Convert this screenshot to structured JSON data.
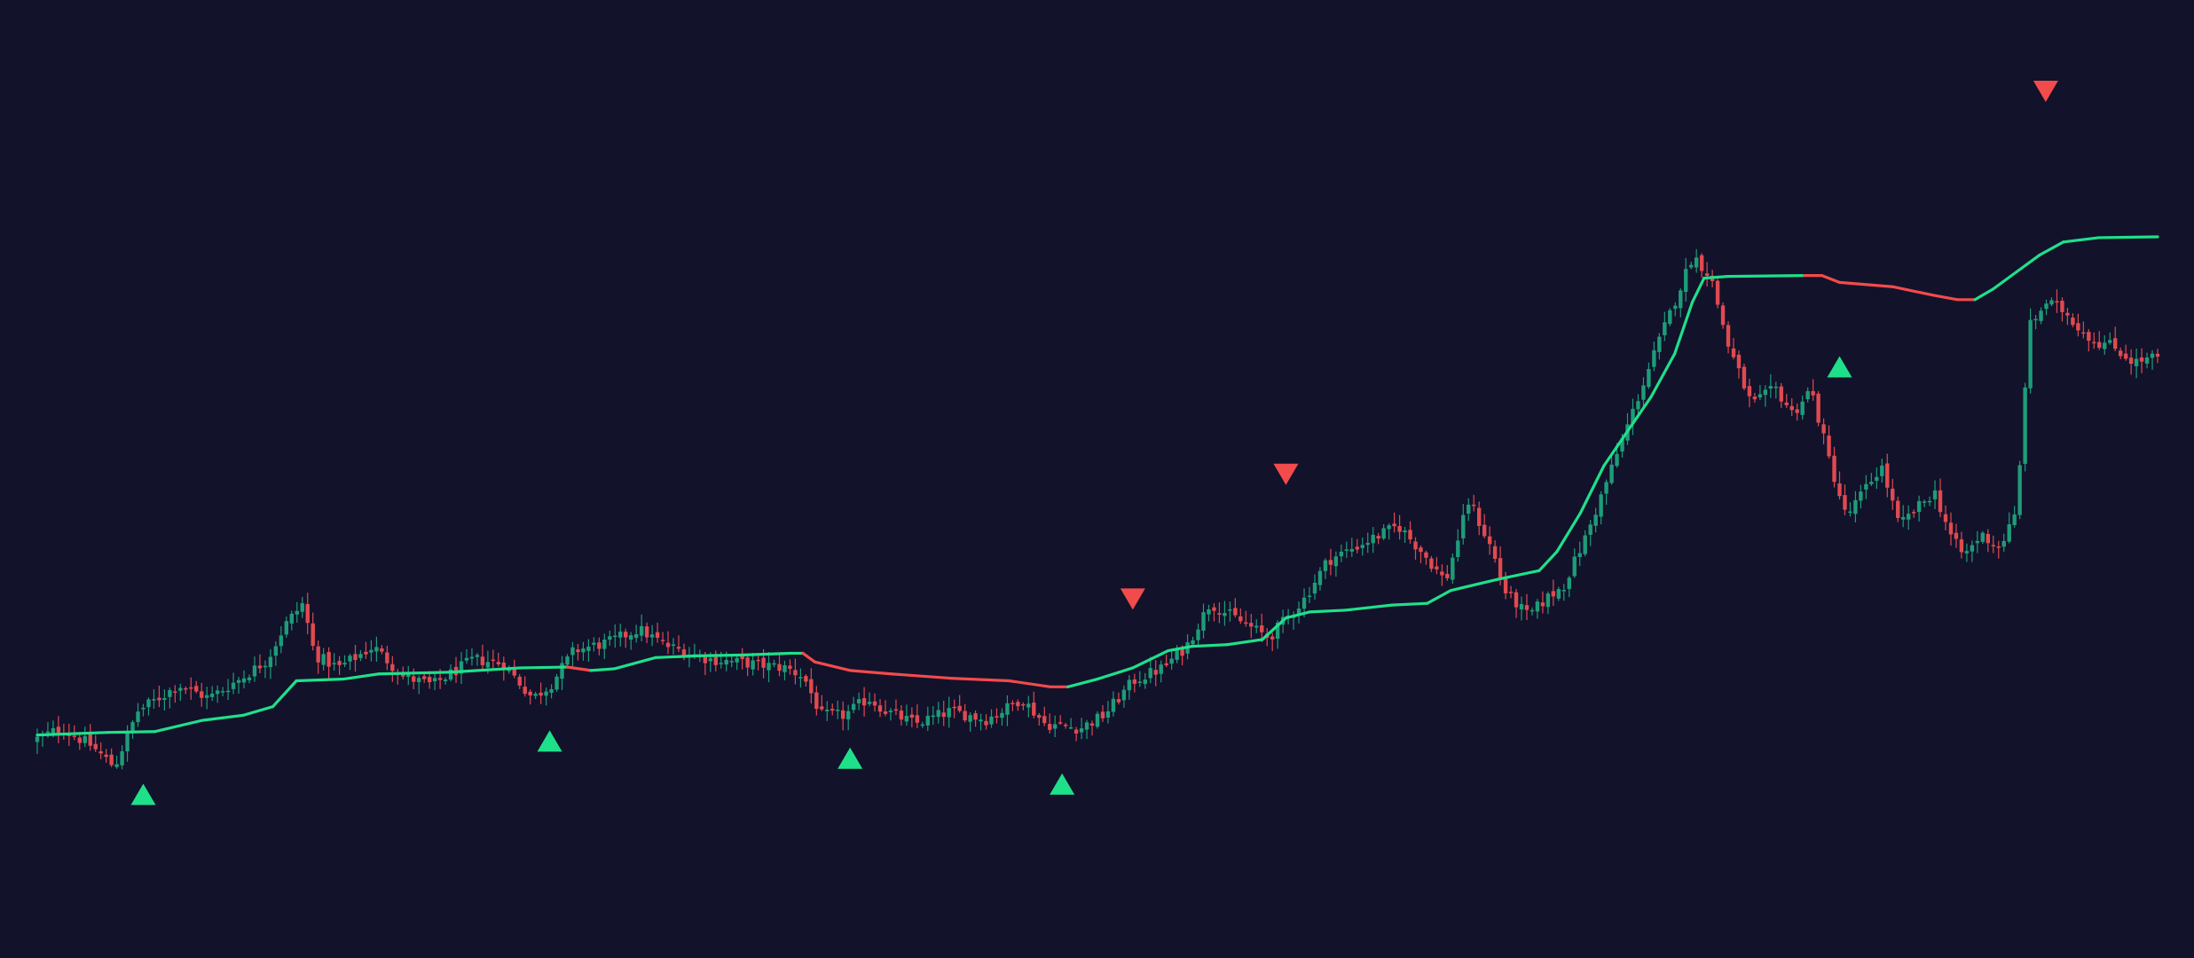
{
  "chart_data": {
    "type": "candlestick",
    "title": "",
    "xlabel": "",
    "ylabel": "",
    "axes_visible": false,
    "grid": false,
    "legend": "none",
    "ylim": [
      0,
      1000
    ],
    "colors": {
      "background": "#12122b",
      "bull": "#1fe08a",
      "bear": "#f24b4b",
      "candle_bull": "#1e9c78",
      "candle_bear": "#e04a4f"
    },
    "price_path": [
      [
        0,
        180
      ],
      [
        5,
        195
      ],
      [
        10,
        175
      ],
      [
        14,
        150
      ],
      [
        18,
        215
      ],
      [
        25,
        245
      ],
      [
        30,
        230
      ],
      [
        36,
        255
      ],
      [
        40,
        275
      ],
      [
        43,
        315
      ],
      [
        46,
        340
      ],
      [
        48,
        280
      ],
      [
        52,
        265
      ],
      [
        58,
        290
      ],
      [
        63,
        255
      ],
      [
        68,
        245
      ],
      [
        75,
        275
      ],
      [
        80,
        270
      ],
      [
        85,
        230
      ],
      [
        88,
        245
      ],
      [
        92,
        285
      ],
      [
        98,
        295
      ],
      [
        103,
        310
      ],
      [
        108,
        290
      ],
      [
        115,
        275
      ],
      [
        122,
        270
      ],
      [
        128,
        265
      ],
      [
        131,
        255
      ],
      [
        134,
        210
      ],
      [
        138,
        210
      ],
      [
        142,
        230
      ],
      [
        145,
        215
      ],
      [
        150,
        200
      ],
      [
        156,
        215
      ],
      [
        162,
        205
      ],
      [
        166,
        220
      ],
      [
        168,
        230
      ],
      [
        172,
        200
      ],
      [
        178,
        195
      ],
      [
        182,
        210
      ],
      [
        187,
        250
      ],
      [
        192,
        265
      ],
      [
        196,
        290
      ],
      [
        200,
        340
      ],
      [
        205,
        320
      ],
      [
        210,
        300
      ],
      [
        216,
        345
      ],
      [
        220,
        390
      ],
      [
        226,
        410
      ],
      [
        232,
        430
      ],
      [
        236,
        400
      ],
      [
        240,
        365
      ],
      [
        244,
        460
      ],
      [
        248,
        400
      ],
      [
        250,
        355
      ],
      [
        254,
        325
      ],
      [
        257,
        345
      ],
      [
        260,
        360
      ],
      [
        264,
        420
      ],
      [
        270,
        530
      ],
      [
        276,
        640
      ],
      [
        280,
        710
      ],
      [
        282,
        745
      ],
      [
        285,
        720
      ],
      [
        288,
        640
      ],
      [
        292,
        570
      ],
      [
        296,
        590
      ],
      [
        299,
        560
      ],
      [
        302,
        590
      ],
      [
        305,
        510
      ],
      [
        308,
        440
      ],
      [
        311,
        470
      ],
      [
        314,
        500
      ],
      [
        317,
        430
      ],
      [
        320,
        450
      ],
      [
        323,
        470
      ],
      [
        326,
        415
      ],
      [
        328,
        395
      ],
      [
        331,
        420
      ],
      [
        334,
        405
      ],
      [
        337,
        445
      ],
      [
        339,
        660
      ],
      [
        342,
        690
      ],
      [
        345,
        680
      ],
      [
        347,
        665
      ],
      [
        350,
        645
      ],
      [
        353,
        640
      ],
      [
        357,
        620
      ],
      [
        360,
        625
      ]
    ],
    "trend_line": [
      [
        0,
        187,
        "bull"
      ],
      [
        12,
        190,
        "bull"
      ],
      [
        20,
        191,
        "bull"
      ],
      [
        28,
        204,
        "bull"
      ],
      [
        35,
        210,
        "bull"
      ],
      [
        40,
        220,
        "bull"
      ],
      [
        44,
        250,
        "bull"
      ],
      [
        52,
        252,
        "bull"
      ],
      [
        58,
        258,
        "bull"
      ],
      [
        70,
        260,
        "bull"
      ],
      [
        82,
        265,
        "bull"
      ],
      [
        90,
        266,
        "bull"
      ],
      [
        94,
        262,
        "bear"
      ],
      [
        98,
        264,
        "bull"
      ],
      [
        105,
        277,
        "bull"
      ],
      [
        112,
        279,
        "bull"
      ],
      [
        120,
        280,
        "bull"
      ],
      [
        128,
        282,
        "bull"
      ],
      [
        130,
        282,
        "bull"
      ],
      [
        132,
        272,
        "bear"
      ],
      [
        138,
        262,
        "bear"
      ],
      [
        145,
        258,
        "bear"
      ],
      [
        155,
        253,
        "bear"
      ],
      [
        165,
        250,
        "bear"
      ],
      [
        172,
        243,
        "bear"
      ],
      [
        175,
        243,
        "bear"
      ],
      [
        180,
        252,
        "bull"
      ],
      [
        186,
        265,
        "bull"
      ],
      [
        192,
        285,
        "bull"
      ],
      [
        196,
        290,
        "bull"
      ],
      [
        202,
        292,
        "bull"
      ],
      [
        208,
        298,
        "bull"
      ],
      [
        212,
        323,
        "bull"
      ],
      [
        216,
        330,
        "bull"
      ],
      [
        222,
        332,
        "bull"
      ],
      [
        230,
        338,
        "bull"
      ],
      [
        236,
        340,
        "bull"
      ],
      [
        240,
        355,
        "bull"
      ],
      [
        248,
        368,
        "bull"
      ],
      [
        255,
        378,
        "bull"
      ],
      [
        258,
        400,
        "bull"
      ],
      [
        262,
        445,
        "bull"
      ],
      [
        266,
        500,
        "bull"
      ],
      [
        270,
        540,
        "bull"
      ],
      [
        274,
        580,
        "bull"
      ],
      [
        278,
        630,
        "bull"
      ],
      [
        281,
        690,
        "bull"
      ],
      [
        283,
        718,
        "bull"
      ],
      [
        287,
        720,
        "bull"
      ],
      [
        300,
        721,
        "bull"
      ],
      [
        303,
        721,
        "bear"
      ],
      [
        306,
        713,
        "bear"
      ],
      [
        315,
        708,
        "bear"
      ],
      [
        322,
        698,
        "bear"
      ],
      [
        326,
        693,
        "bear"
      ],
      [
        329,
        693,
        "bear"
      ],
      [
        332,
        705,
        "bull"
      ],
      [
        336,
        725,
        "bull"
      ],
      [
        340,
        745,
        "bull"
      ],
      [
        344,
        760,
        "bull"
      ],
      [
        350,
        765,
        "bull"
      ],
      [
        360,
        766,
        "bull"
      ]
    ],
    "signals": [
      {
        "type": "buy",
        "x": 18,
        "y": 118
      },
      {
        "type": "buy",
        "x": 87,
        "y": 180
      },
      {
        "type": "buy",
        "x": 138,
        "y": 160
      },
      {
        "type": "buy",
        "x": 174,
        "y": 130
      },
      {
        "type": "sell",
        "x": 186,
        "y": 345
      },
      {
        "type": "sell",
        "x": 212,
        "y": 490
      },
      {
        "type": "buy",
        "x": 306,
        "y": 615
      },
      {
        "type": "sell",
        "x": 341,
        "y": 935
      }
    ]
  }
}
